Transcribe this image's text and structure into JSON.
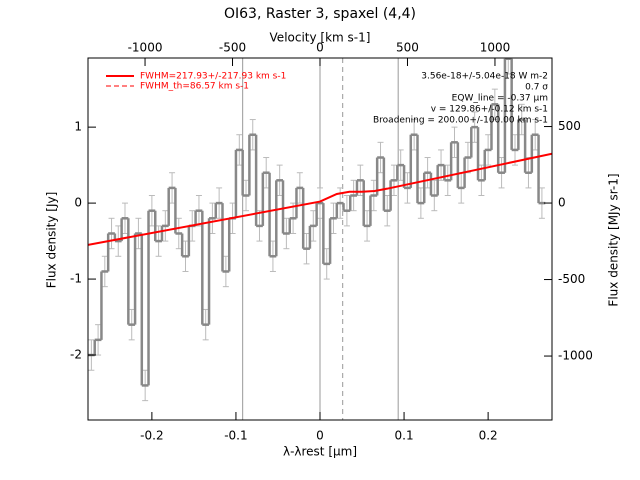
{
  "chart_data": {
    "type": "step",
    "title": "OI63, Raster 3, spaxel (4,4)",
    "xlabel": "λ-λrest [μm]",
    "ylabel": "Flux density [Jy]",
    "x2label": "Velocity [km s-1]",
    "y2label": "Flux density [MJy sr-1]",
    "xlim": [
      -0.276,
      0.276
    ],
    "xticks": [
      -0.2,
      -0.1,
      0.0,
      0.1,
      0.2
    ],
    "ylim": [
      -2.855,
      1.91
    ],
    "yticks": [
      -2,
      -1,
      0,
      1
    ],
    "x2lim": [
      -1326,
      1326
    ],
    "x2ticks": [
      -1000,
      -500,
      0,
      500,
      1000
    ],
    "y2lim": [
      -1418,
      948
    ],
    "y2ticks": [
      -1000,
      -500,
      0,
      500
    ],
    "vlines": [
      -0.092,
      0.0,
      0.093
    ],
    "dashed_vline": 0.027,
    "x": [
      -0.272,
      -0.264,
      -0.256,
      -0.248,
      -0.24,
      -0.232,
      -0.224,
      -0.216,
      -0.208,
      -0.2,
      -0.192,
      -0.184,
      -0.176,
      -0.168,
      -0.16,
      -0.152,
      -0.144,
      -0.136,
      -0.128,
      -0.12,
      -0.112,
      -0.104,
      -0.096,
      -0.088,
      -0.08,
      -0.072,
      -0.064,
      -0.056,
      -0.048,
      -0.04,
      -0.032,
      -0.024,
      -0.016,
      -0.008,
      0.0,
      0.008,
      0.016,
      0.024,
      0.032,
      0.04,
      0.048,
      0.056,
      0.064,
      0.072,
      0.08,
      0.088,
      0.096,
      0.104,
      0.112,
      0.12,
      0.128,
      0.136,
      0.144,
      0.152,
      0.16,
      0.168,
      0.176,
      0.184,
      0.192,
      0.2,
      0.208,
      0.216,
      0.224,
      0.232,
      0.24,
      0.248,
      0.256,
      0.264
    ],
    "series": [
      {
        "name": "spectrum",
        "color": "#888888",
        "values": [
          -2.0,
          -1.8,
          -0.9,
          -0.4,
          -0.5,
          -0.2,
          -1.6,
          -0.4,
          -2.4,
          -0.1,
          -0.5,
          -0.3,
          0.2,
          -0.4,
          -0.7,
          -0.3,
          -0.1,
          -1.6,
          -0.2,
          0.0,
          -0.9,
          -0.2,
          0.7,
          0.1,
          0.9,
          -0.3,
          0.4,
          -0.7,
          0.3,
          -0.4,
          -0.2,
          0.2,
          -0.6,
          -0.3,
          0.0,
          -0.8,
          -0.2,
          0.0,
          -0.1,
          0.1,
          0.3,
          -0.3,
          0.1,
          0.6,
          -0.1,
          0.3,
          0.5,
          0.2,
          0.9,
          0.0,
          0.4,
          0.1,
          0.5,
          0.3,
          0.8,
          0.2,
          0.6,
          1.0,
          0.3,
          0.7,
          1.3,
          0.4,
          1.9,
          0.7,
          1.1,
          0.4,
          0.9,
          0.0
        ],
        "errors": [
          0.2,
          0.2,
          0.2,
          0.2,
          0.2,
          0.2,
          0.2,
          0.2,
          0.2,
          0.2,
          0.2,
          0.2,
          0.2,
          0.2,
          0.2,
          0.2,
          0.2,
          0.2,
          0.2,
          0.2,
          0.2,
          0.2,
          0.2,
          0.2,
          0.2,
          0.2,
          0.2,
          0.2,
          0.2,
          0.2,
          0.2,
          0.2,
          0.2,
          0.2,
          0.2,
          0.2,
          0.2,
          0.2,
          0.2,
          0.2,
          0.2,
          0.2,
          0.2,
          0.2,
          0.2,
          0.2,
          0.2,
          0.2,
          0.2,
          0.2,
          0.2,
          0.2,
          0.2,
          0.2,
          0.2,
          0.2,
          0.2,
          0.2,
          0.2,
          0.2,
          0.2,
          0.2,
          0.2,
          0.2,
          0.2,
          0.2,
          0.2,
          0.2
        ]
      }
    ],
    "fit": {
      "color": "#ff0000",
      "x": [
        -0.276,
        0.0,
        0.02,
        0.035,
        0.05,
        0.065,
        0.08,
        0.276
      ],
      "values": [
        -0.55,
        0.02,
        0.12,
        0.15,
        0.15,
        0.16,
        0.19,
        0.65
      ]
    },
    "legend": [
      "FWHM=217.93+/-217.93 km s-1",
      "FWHM_th=86.57 km s-1"
    ],
    "annotations": [
      "3.56e-18+/-5.04e-18 W m-2",
      "0.7 σ",
      "EQW_line = -0.37 μm",
      "v = 129.86+/-0.12 km s-1",
      "Broadening = 200.00+/-100.00 km s-1"
    ]
  }
}
